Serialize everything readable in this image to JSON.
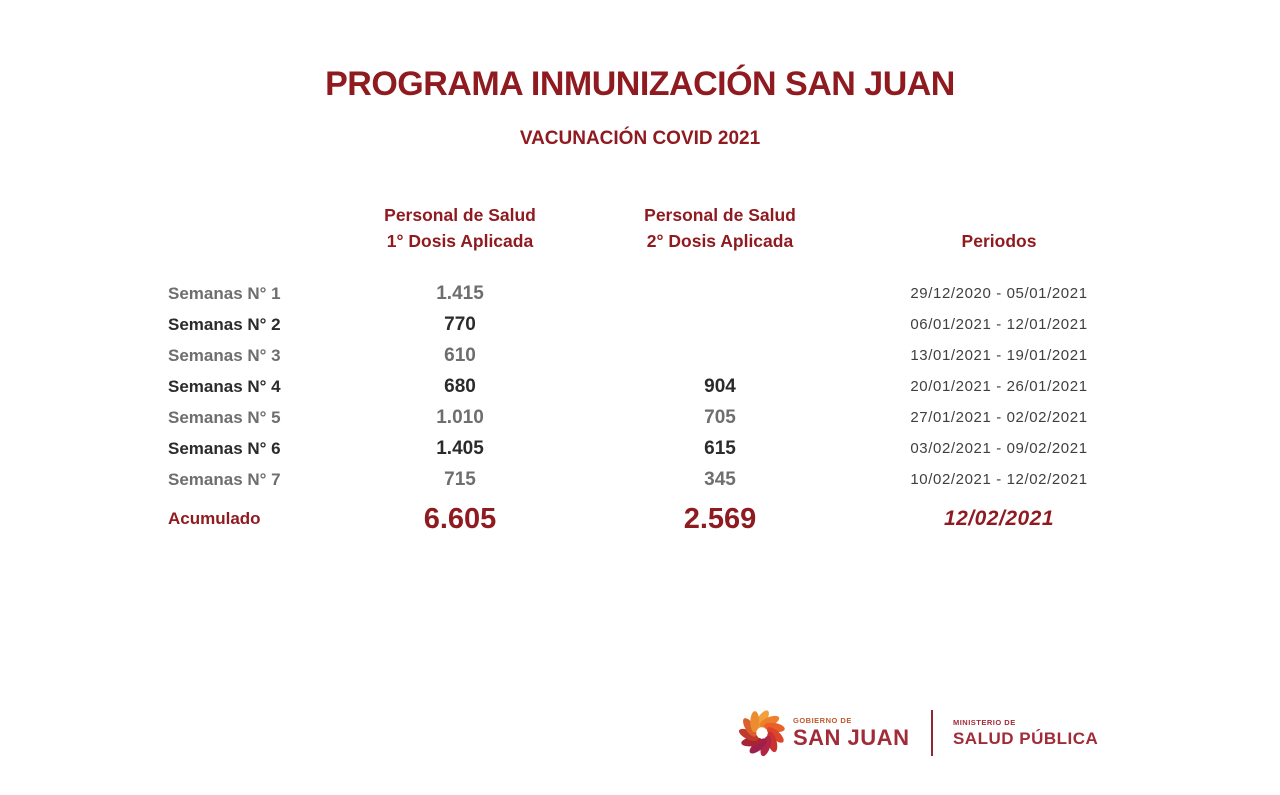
{
  "page": {
    "title": "PROGRAMA INMUNIZACIÓN SAN JUAN",
    "subtitle": "VACUNACIÓN COVID 2021"
  },
  "table": {
    "headers": {
      "col1_line1": "Personal de Salud",
      "col1_line2": "1° Dosis Aplicada",
      "col2_line1": "Personal de Salud",
      "col2_line2": "2° Dosis Aplicada",
      "periods": "Periodos"
    },
    "rows": [
      {
        "label": "Semanas N° 1",
        "dose1": "1.415",
        "dose2": "",
        "period": "29/12/2020 - 05/01/2021",
        "emphasis": "gray"
      },
      {
        "label": "Semanas N° 2",
        "dose1": "770",
        "dose2": "",
        "period": "06/01/2021 - 12/01/2021",
        "emphasis": "dark"
      },
      {
        "label": "Semanas N° 3",
        "dose1": "610",
        "dose2": "",
        "period": "13/01/2021 - 19/01/2021",
        "emphasis": "gray"
      },
      {
        "label": "Semanas N° 4",
        "dose1": "680",
        "dose2": "904",
        "period": "20/01/2021 - 26/01/2021",
        "emphasis": "dark"
      },
      {
        "label": "Semanas N° 5",
        "dose1": "1.010",
        "dose2": "705",
        "period": "27/01/2021 - 02/02/2021",
        "emphasis": "gray"
      },
      {
        "label": "Semanas N° 6",
        "dose1": "1.405",
        "dose2": "615",
        "period": "03/02/2021 - 09/02/2021",
        "emphasis": "dark"
      },
      {
        "label": "Semanas N° 7",
        "dose1": "715",
        "dose2": "345",
        "period": "10/02/2021 - 12/02/2021",
        "emphasis": "gray"
      }
    ],
    "total": {
      "label": "Acumulado",
      "dose1": "6.605",
      "dose2": "2.569",
      "date": "12/02/2021"
    }
  },
  "footer": {
    "gov_small": "GOBIERNO DE",
    "gov_large": "SAN JUAN",
    "ministry_small": "MINISTERIO DE",
    "ministry_large": "SALUD PÚBLICA"
  },
  "colors": {
    "maroon": "#8f1a1f",
    "footer_maroon": "#a02c38",
    "gobierno_orange": "#c05a2e",
    "gray_row": "#6e6e6e",
    "dark_row": "#2b2b2b",
    "period_text": "#3f3f3f",
    "logo_palette": [
      "#f2a03a",
      "#ef7f2c",
      "#e9602a",
      "#dd4529",
      "#c93133",
      "#b22546",
      "#9c1f4e",
      "#a82432",
      "#bf3a2a",
      "#da5f2a",
      "#ec8c30"
    ]
  }
}
